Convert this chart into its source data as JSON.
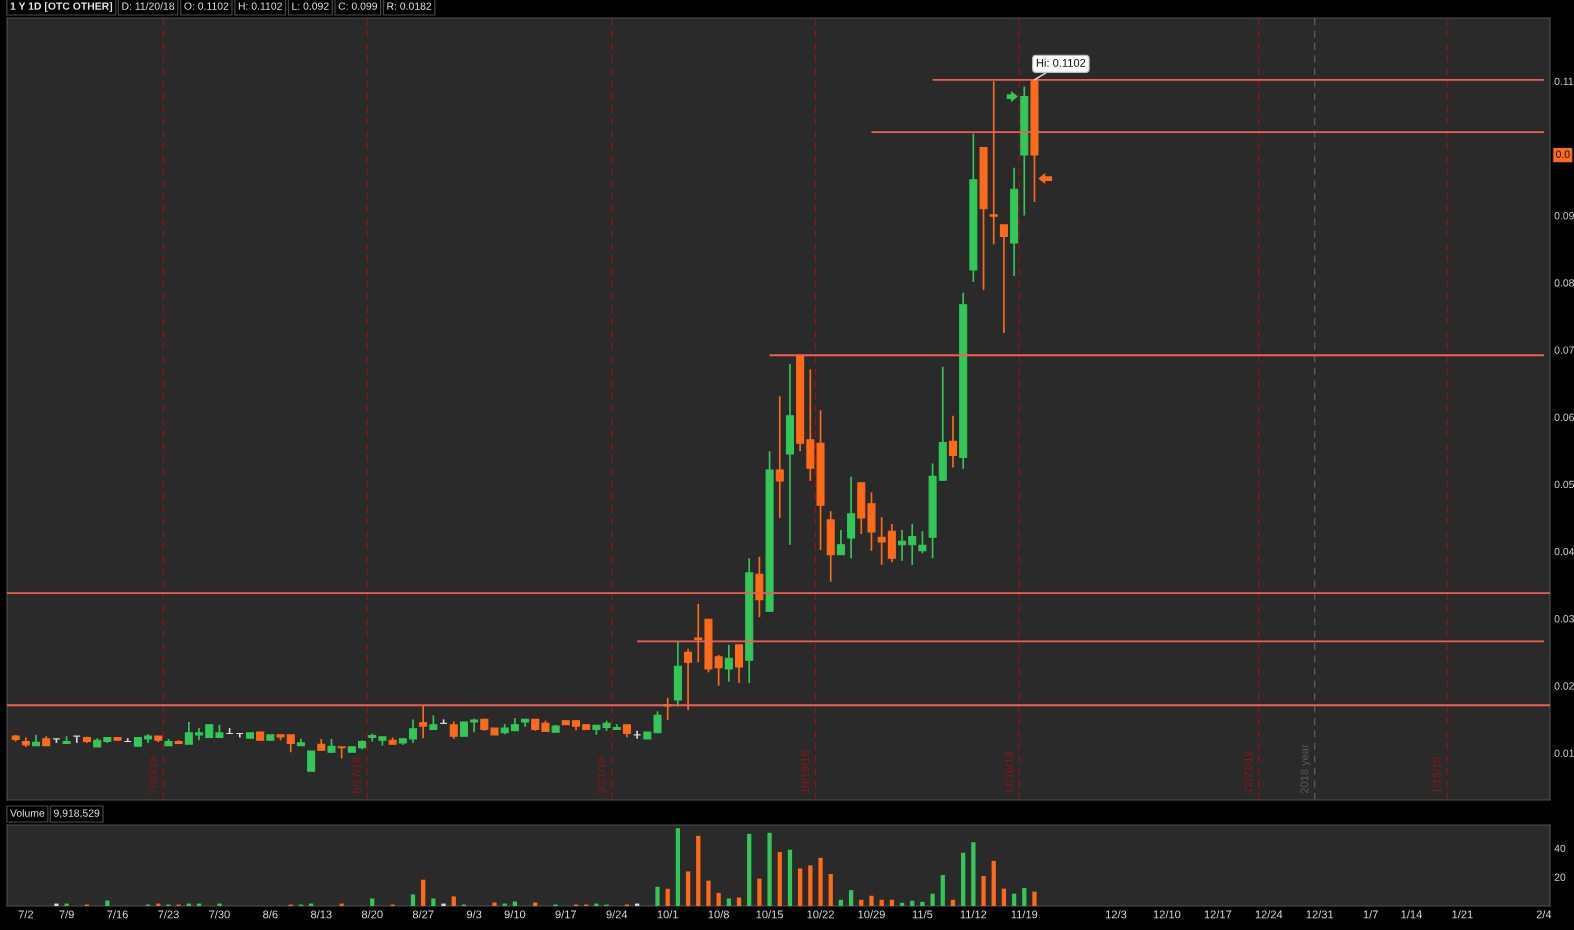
{
  "chart_data": [
    {
      "type": "candlestick",
      "title": "1 Y 1D [OTC OTHER]",
      "annotations": [
        "D: 11/20/18",
        "O: 0.1102",
        "H: 0.1102",
        "L: 0.092",
        "C: 0.099",
        "R: 0.0182",
        "0.0",
        "7/20/18",
        "8/17/18",
        "9/21/18",
        "10/19/18",
        "11/16/18",
        "12/21/18",
        "2018 year",
        "1/18/19",
        {
          "text": "Hi: 0.1102",
          "y": 0.1102
        }
      ],
      "categories": [
        null,
        null,
        null,
        null,
        null,
        null,
        null,
        null,
        null,
        null,
        null,
        null,
        null,
        null,
        null,
        null,
        null,
        null,
        null,
        null,
        null,
        null,
        null,
        null,
        null,
        null,
        null,
        null,
        null,
        null,
        null,
        null,
        null,
        null,
        null,
        null,
        null,
        null,
        null,
        null,
        null,
        null,
        null,
        null,
        null,
        null,
        null,
        null,
        null,
        null,
        null,
        null,
        null,
        null,
        null,
        null,
        null,
        null,
        null,
        null,
        null,
        null,
        null,
        null,
        null,
        null,
        null,
        null,
        null,
        null,
        null,
        null,
        null,
        null,
        null,
        null,
        null,
        null,
        null,
        null,
        null,
        null,
        null,
        null,
        null,
        null,
        null,
        null,
        null,
        null,
        null,
        null,
        null,
        null,
        null,
        null,
        null,
        null,
        null,
        null,
        null,
        null,
        null,
        null,
        null,
        null,
        null,
        null,
        null,
        null,
        null,
        null,
        null,
        null,
        null,
        null,
        null,
        null,
        null,
        null,
        null,
        null,
        null,
        null,
        null,
        null,
        null,
        null,
        null,
        null,
        null,
        null,
        null,
        null,
        null,
        null,
        null,
        null,
        null,
        null,
        null,
        null,
        null,
        null,
        null,
        null,
        null,
        null,
        null,
        null,
        null
      ],
      "ohlc": [
        [
          0.0125,
          0.0127,
          0.0117,
          0.012
        ],
        [
          0.0117,
          0.0123,
          0.0109,
          0.0112
        ],
        [
          0.0111,
          0.0127,
          0.0111,
          0.0116
        ],
        [
          0.0121,
          0.0125,
          0.0111,
          0.0111
        ],
        [
          0.0121,
          0.0121,
          0.0115,
          0.0121
        ],
        [
          0.0114,
          0.0125,
          0.0114,
          0.0117
        ],
        [
          0.0125,
          0.0125,
          0.0115,
          0.0125
        ],
        [
          0.0123,
          0.0124,
          0.0115,
          0.0117
        ],
        [
          0.0109,
          0.0122,
          0.0109,
          0.0119
        ],
        [
          0.0117,
          0.0123,
          0.0115,
          0.0123
        ],
        [
          0.0123,
          0.0123,
          0.0119,
          0.0119
        ],
        [
          0.0117,
          0.0122,
          0.0117,
          0.0117
        ],
        [
          0.011,
          0.0123,
          0.011,
          0.0123
        ],
        [
          0.0121,
          0.0128,
          0.0115,
          0.0125
        ],
        [
          0.0125,
          0.0125,
          0.0116,
          0.0119
        ],
        [
          0.0111,
          0.0121,
          0.0111,
          0.0117
        ],
        [
          0.0117,
          0.0119,
          0.0113,
          0.0114
        ],
        [
          0.0113,
          0.0146,
          0.0113,
          0.013
        ],
        [
          0.0127,
          0.0137,
          0.0119,
          0.013
        ],
        [
          0.0123,
          0.0142,
          0.0123,
          0.0142
        ],
        [
          0.0123,
          0.0142,
          0.0123,
          0.013
        ],
        [
          0.0129,
          0.0137,
          0.0129,
          0.0129
        ],
        [
          0.0129,
          0.0129,
          0.0123,
          0.0129
        ],
        [
          0.0122,
          0.013,
          0.0122,
          0.013
        ],
        [
          0.0131,
          0.0131,
          0.0119,
          0.0119
        ],
        [
          0.0119,
          0.0127,
          0.0119,
          0.0127
        ],
        [
          0.0127,
          0.0127,
          0.0119,
          0.0124
        ],
        [
          0.0127,
          0.0127,
          0.0101,
          0.0114
        ],
        [
          0.0111,
          0.0121,
          0.0111,
          0.0115
        ],
        [
          0.0073,
          0.0103,
          0.0073,
          0.0103
        ],
        [
          0.0113,
          0.0121,
          0.0104,
          0.0104
        ],
        [
          0.0101,
          0.0121,
          0.0101,
          0.011
        ],
        [
          0.0109,
          0.0109,
          0.0092,
          0.0108
        ],
        [
          0.0101,
          0.0109,
          0.0101,
          0.0109
        ],
        [
          0.0108,
          0.0119,
          0.0105,
          0.0117
        ],
        [
          0.0123,
          0.0129,
          0.0117,
          0.0126
        ],
        [
          0.0119,
          0.0124,
          0.0111,
          0.0124
        ],
        [
          0.0119,
          0.0123,
          0.0113,
          0.0113
        ],
        [
          0.0115,
          0.0121,
          0.0112,
          0.0121
        ],
        [
          0.0121,
          0.015,
          0.0115,
          0.0136
        ],
        [
          0.0145,
          0.017,
          0.0122,
          0.014
        ],
        [
          0.0135,
          0.0156,
          0.0135,
          0.0142
        ],
        [
          0.0144,
          0.015,
          0.0144,
          0.0144
        ],
        [
          0.0142,
          0.0147,
          0.0121,
          0.0125
        ],
        [
          0.0125,
          0.0146,
          0.0125,
          0.0146
        ],
        [
          0.0146,
          0.0151,
          0.0131,
          0.0149
        ],
        [
          0.015,
          0.015,
          0.0133,
          0.0135
        ],
        [
          0.0137,
          0.0137,
          0.0127,
          0.0127
        ],
        [
          0.013,
          0.0143,
          0.0128,
          0.0137
        ],
        [
          0.0133,
          0.0152,
          0.0133,
          0.0142
        ],
        [
          0.0146,
          0.0151,
          0.0139,
          0.015
        ],
        [
          0.015,
          0.015,
          0.0133,
          0.0135
        ],
        [
          0.0144,
          0.0148,
          0.0132,
          0.0132
        ],
        [
          0.0131,
          0.0142,
          0.0131,
          0.014
        ],
        [
          0.0148,
          0.0148,
          0.0142,
          0.0142
        ],
        [
          0.0148,
          0.0148,
          0.0134,
          0.014
        ],
        [
          0.0142,
          0.0142,
          0.0135,
          0.0135
        ],
        [
          0.0135,
          0.0141,
          0.0127,
          0.0141
        ],
        [
          0.0138,
          0.0148,
          0.0133,
          0.0144
        ],
        [
          0.0135,
          0.0143,
          0.0135,
          0.0138
        ],
        [
          0.0142,
          0.0142,
          0.0123,
          0.0129
        ],
        [
          0.0127,
          0.0133,
          0.0121,
          0.0127
        ],
        [
          0.0121,
          0.0131,
          0.0121,
          0.0131
        ],
        [
          0.013,
          0.0162,
          0.013,
          0.0156
        ],
        [
          0.0172,
          0.0182,
          0.0149,
          0.017
        ],
        [
          0.0179,
          0.0266,
          0.0169,
          0.0229
        ],
        [
          0.025,
          0.0255,
          0.0164,
          0.0235
        ],
        [
          0.0271,
          0.0322,
          0.0235,
          0.0269
        ],
        [
          0.0299,
          0.0299,
          0.022,
          0.0225
        ],
        [
          0.0243,
          0.0246,
          0.02,
          0.0227
        ],
        [
          0.0225,
          0.0261,
          0.0206,
          0.0241
        ],
        [
          0.0261,
          0.0261,
          0.0204,
          0.0228
        ],
        [
          0.0238,
          0.039,
          0.0204,
          0.0368
        ],
        [
          0.0366,
          0.0392,
          0.0302,
          0.0328
        ],
        [
          0.0311,
          0.0549,
          0.031,
          0.0521
        ],
        [
          0.0521,
          0.0631,
          0.045,
          0.0505
        ],
        [
          0.0545,
          0.0679,
          0.041,
          0.0602
        ],
        [
          0.0692,
          0.0692,
          0.0549,
          0.0561
        ],
        [
          0.0566,
          0.0671,
          0.0505,
          0.0524
        ],
        [
          0.0561,
          0.061,
          0.0402,
          0.0469
        ],
        [
          0.0447,
          0.046,
          0.0355,
          0.0395
        ],
        [
          0.0395,
          0.0432,
          0.0395,
          0.041
        ],
        [
          0.042,
          0.0511,
          0.039,
          0.0456
        ],
        [
          0.0502,
          0.0502,
          0.0426,
          0.045
        ],
        [
          0.0471,
          0.0488,
          0.0401,
          0.0429
        ],
        [
          0.0421,
          0.0451,
          0.038,
          0.0414
        ],
        [
          0.043,
          0.0441,
          0.0384,
          0.039
        ],
        [
          0.041,
          0.0432,
          0.0386,
          0.0415
        ],
        [
          0.041,
          0.0441,
          0.038,
          0.0422
        ],
        [
          0.0401,
          0.043,
          0.0397,
          0.0409
        ],
        [
          0.0421,
          0.0531,
          0.039,
          0.0512
        ],
        [
          0.0506,
          0.0675,
          0.0505,
          0.0562
        ],
        [
          0.0564,
          0.0602,
          0.0525,
          0.0543
        ],
        [
          0.054,
          0.0785,
          0.0523,
          0.0767
        ],
        [
          0.0819,
          0.1022,
          0.0801,
          0.0953
        ],
        [
          0.1001,
          0.1001,
          0.0789,
          0.091
        ],
        [
          0.0901,
          0.11,
          0.0857,
          0.0899
        ],
        [
          0.0886,
          0.0886,
          0.0725,
          0.0869
        ],
        [
          0.0859,
          0.0971,
          0.081,
          0.0939
        ],
        [
          0.099,
          0.1092,
          0.09,
          0.1077
        ],
        [
          0.1102,
          0.1102,
          0.092,
          0.099
        ],
        null,
        null,
        null,
        null,
        null,
        null,
        null,
        null,
        null,
        null,
        null,
        null,
        null,
        null,
        null,
        null,
        null,
        null,
        null,
        null,
        null,
        null,
        null,
        null,
        null,
        null,
        null,
        null,
        null,
        null,
        null,
        null,
        null,
        null,
        null,
        null,
        null,
        null,
        null,
        null,
        null,
        null,
        null,
        null,
        null,
        null,
        null,
        null,
        null,
        null
      ],
      "colors": [
        "#ff6a1a",
        "#ff6a1a",
        "#33c759",
        "#ff6a1a",
        "#d9d9d9",
        "#33c759",
        "#d9d9d9",
        "#ff6a1a",
        "#33c759",
        "#33c759",
        "#ff6a1a",
        "#d9d9d9",
        "#33c759",
        "#33c759",
        "#ff6a1a",
        "#33c759",
        "#ff6a1a",
        "#33c759",
        "#33c759",
        "#33c759",
        "#33c759",
        "#d9d9d9",
        "#d9d9d9",
        "#33c759",
        "#ff6a1a",
        "#33c759",
        "#ff6a1a",
        "#ff6a1a",
        "#33c759",
        "#33c759",
        "#ff6a1a",
        "#33c759",
        "#ff6a1a",
        "#33c759",
        "#33c759",
        "#33c759",
        "#33c759",
        "#ff6a1a",
        "#33c759",
        "#33c759",
        "#ff6a1a",
        "#33c759",
        "#d9d9d9",
        "#ff6a1a",
        "#33c759",
        "#33c759",
        "#ff6a1a",
        "#ff6a1a",
        "#33c759",
        "#33c759",
        "#33c759",
        "#ff6a1a",
        "#ff6a1a",
        "#33c759",
        "#ff6a1a",
        "#ff6a1a",
        "#ff6a1a",
        "#33c759",
        "#33c759",
        "#33c759",
        "#ff6a1a",
        "#d9d9d9",
        "#33c759",
        "#33c759",
        "#ff6a1a",
        "#33c759",
        "#ff6a1a",
        "#ff6a1a",
        "#ff6a1a",
        "#ff6a1a",
        "#33c759",
        "#ff6a1a",
        "#33c759",
        "#ff6a1a",
        "#33c759",
        "#ff6a1a",
        "#33c759",
        "#ff6a1a",
        "#ff6a1a",
        "#ff6a1a",
        "#ff6a1a",
        "#33c759",
        "#33c759",
        "#ff6a1a",
        "#ff6a1a",
        "#ff6a1a",
        "#ff6a1a",
        "#33c759",
        "#33c759",
        "#33c759",
        "#33c759",
        "#33c759",
        "#ff6a1a",
        "#33c759",
        "#33c759",
        "#ff6a1a",
        "#ff6a1a",
        "#ff6a1a",
        "#33c759",
        "#33c759",
        "#ff6a1a",
        null,
        null,
        null,
        null,
        null,
        null,
        null,
        null,
        null,
        null,
        null,
        null,
        null,
        null,
        null,
        null,
        null,
        null,
        null,
        null,
        null,
        null,
        null,
        null,
        null,
        null,
        null,
        null,
        null,
        null,
        null,
        null,
        null,
        null,
        null,
        null,
        null,
        null,
        null,
        null,
        null,
        null,
        null,
        null,
        null,
        null,
        null,
        null,
        null,
        null
      ],
      "series": [
        {
          "type": "line",
          "color": "#ef5f55",
          "values": [
            null,
            null,
            null,
            null,
            null,
            null,
            null,
            null,
            null,
            null,
            null,
            null,
            null,
            null,
            null,
            null,
            null,
            null,
            null,
            null,
            null,
            null,
            null,
            null,
            null,
            null,
            null,
            null,
            null,
            null,
            null,
            null,
            null,
            null,
            null,
            null,
            null,
            null,
            null,
            null,
            null,
            null,
            null,
            null,
            null,
            null,
            null,
            null,
            null,
            null,
            null,
            null,
            null,
            null,
            null,
            null,
            null,
            null,
            null,
            null,
            null,
            null,
            null,
            null,
            null,
            null,
            null,
            null,
            null,
            null,
            null,
            null,
            null,
            null,
            null,
            null,
            null,
            null,
            null,
            null,
            null,
            null,
            null,
            null,
            null,
            null,
            null,
            null,
            null,
            null,
            0.1102,
            0.1102,
            0.1102,
            0.1102,
            0.1102,
            0.1102,
            0.1102,
            0.1102,
            0.1102,
            0.1102,
            0.1102,
            0.1102,
            0.1102,
            0.1102,
            0.1102,
            0.1102,
            0.1102,
            0.1102,
            0.1102,
            0.1102,
            0.1102,
            0.1102,
            0.1102,
            0.1102,
            0.1102,
            0.1102,
            0.1102,
            0.1102,
            0.1102,
            0.1102,
            0.1102,
            0.1102,
            0.1102,
            0.1102,
            0.1102,
            0.1102,
            0.1102,
            0.1102,
            0.1102,
            0.1102,
            0.1102,
            0.1102,
            0.1102,
            0.1102,
            0.1102,
            0.1102,
            0.1102,
            0.1102,
            0.1102,
            0.1102,
            0.1102,
            0.1102,
            0.1102,
            0.1102,
            0.1102,
            0.1102,
            0.1102,
            0.1102,
            0.1102,
            0.1102,
            0.1102
          ]
        },
        {
          "type": "line",
          "color": "#ef5f55",
          "values": [
            null,
            null,
            null,
            null,
            null,
            null,
            null,
            null,
            null,
            null,
            null,
            null,
            null,
            null,
            null,
            null,
            null,
            null,
            null,
            null,
            null,
            null,
            null,
            null,
            null,
            null,
            null,
            null,
            null,
            null,
            null,
            null,
            null,
            null,
            null,
            null,
            null,
            null,
            null,
            null,
            null,
            null,
            null,
            null,
            null,
            null,
            null,
            null,
            null,
            null,
            null,
            null,
            null,
            null,
            null,
            null,
            null,
            null,
            null,
            null,
            null,
            null,
            null,
            null,
            null,
            null,
            null,
            null,
            null,
            null,
            null,
            null,
            null,
            null,
            null,
            null,
            null,
            null,
            null,
            null,
            null,
            null,
            null,
            null,
            0.1024,
            0.1024,
            0.1024,
            0.1024,
            0.1024,
            0.1024,
            0.1024,
            0.1024,
            0.1024,
            0.1024,
            0.1024,
            0.1024,
            0.1024,
            0.1024,
            0.1024,
            0.1024,
            0.1024,
            0.1024,
            0.1024,
            0.1024,
            0.1024,
            0.1024,
            0.1024,
            0.1024,
            0.1024,
            0.1024,
            0.1024,
            0.1024,
            0.1024,
            0.1024,
            0.1024,
            0.1024,
            0.1024,
            0.1024,
            0.1024,
            0.1024,
            0.1024,
            0.1024,
            0.1024,
            0.1024,
            0.1024,
            0.1024,
            0.1024,
            0.1024,
            0.1024,
            0.1024,
            0.1024,
            0.1024,
            0.1024,
            0.1024,
            0.1024,
            0.1024,
            0.1024,
            0.1024,
            0.1024,
            0.1024,
            0.1024,
            0.1024,
            0.1024,
            0.1024,
            0.1024,
            0.1024,
            0.1024,
            0.1024,
            0.1024,
            0.1024,
            0.1024
          ]
        },
        {
          "type": "line",
          "color": "#ef5f55",
          "values": [
            null,
            null,
            null,
            null,
            null,
            null,
            null,
            null,
            null,
            null,
            null,
            null,
            null,
            null,
            null,
            null,
            null,
            null,
            null,
            null,
            null,
            null,
            null,
            null,
            null,
            null,
            null,
            null,
            null,
            null,
            null,
            null,
            null,
            null,
            null,
            null,
            null,
            null,
            null,
            null,
            null,
            null,
            null,
            null,
            null,
            null,
            null,
            null,
            null,
            null,
            null,
            null,
            null,
            null,
            null,
            null,
            null,
            null,
            null,
            null,
            null,
            null,
            null,
            null,
            null,
            null,
            null,
            null,
            null,
            null,
            null,
            null,
            null,
            null,
            0.0692,
            0.0692,
            0.0692,
            0.0692,
            0.0692,
            0.0692,
            0.0692,
            0.0692,
            0.0692,
            0.0692,
            0.0692,
            0.0692,
            0.0692,
            0.0692,
            0.0692,
            0.0692,
            0.0692,
            0.0692,
            0.0692,
            0.0692,
            0.0692,
            0.0692,
            0.0692,
            0.0692,
            0.0692,
            0.0692,
            0.0692,
            0.0692,
            0.0692,
            0.0692,
            0.0692,
            0.0692,
            0.0692,
            0.0692,
            0.0692,
            0.0692,
            0.0692,
            0.0692,
            0.0692,
            0.0692,
            0.0692,
            0.0692,
            0.0692,
            0.0692,
            0.0692,
            0.0692,
            0.0692,
            0.0692,
            0.0692,
            0.0692,
            0.0692,
            0.0692,
            0.0692,
            0.0692,
            0.0692,
            0.0692,
            0.0692,
            0.0692,
            0.0692,
            0.0692,
            0.0692,
            0.0692,
            0.0692,
            0.0692,
            0.0692,
            0.0692,
            0.0692,
            0.0692,
            0.0692,
            0.0692,
            0.0692,
            0.0692,
            0.0692,
            0.0692,
            0.0692,
            0.0692,
            0.0692
          ]
        },
        {
          "type": "line",
          "color": "#ef5f55",
          "values": [
            null,
            null,
            null,
            null,
            null,
            null,
            null,
            null,
            null,
            null,
            null,
            null,
            null,
            null,
            null,
            null,
            null,
            null,
            null,
            null,
            null,
            null,
            null,
            null,
            null,
            null,
            null,
            null,
            null,
            null,
            null,
            null,
            null,
            null,
            null,
            null,
            null,
            null,
            null,
            null,
            null,
            null,
            null,
            null,
            null,
            null,
            null,
            null,
            null,
            null,
            null,
            null,
            null,
            null,
            null,
            null,
            null,
            null,
            null,
            null,
            null,
            0.0266,
            0.0266,
            0.0266,
            0.0266,
            0.0266,
            0.0266,
            0.0266,
            0.0266,
            0.0266,
            0.0266,
            0.0266,
            0.0266,
            0.0266,
            0.0266,
            0.0266,
            0.0266,
            0.0266,
            0.0266,
            0.0266,
            0.0266,
            0.0266,
            0.0266,
            0.0266,
            0.0266,
            0.0266,
            0.0266,
            0.0266,
            0.0266,
            0.0266,
            0.0266,
            0.0266,
            0.0266,
            0.0266,
            0.0266,
            0.0266,
            0.0266,
            0.0266,
            0.0266,
            0.0266,
            0.0266,
            0.0266,
            0.0266,
            0.0266,
            0.0266,
            0.0266,
            0.0266,
            0.0266,
            0.0266,
            0.0266,
            0.0266,
            0.0266,
            0.0266,
            0.0266,
            0.0266,
            0.0266,
            0.0266,
            0.0266,
            0.0266,
            0.0266,
            0.0266,
            0.0266,
            0.0266,
            0.0266,
            0.0266,
            0.0266,
            0.0266,
            0.0266,
            0.0266,
            0.0266,
            0.0266,
            0.0266,
            0.0266,
            0.0266,
            0.0266,
            0.0266,
            0.0266,
            0.0266,
            0.0266,
            0.0266,
            0.0266,
            0.0266,
            0.0266,
            0.0266,
            0.0266,
            0.0266,
            0.0266,
            0.0266,
            0.0266,
            0.0266,
            0.0266
          ]
        }
      ],
      "ref_lines": [
        {
          "axis": "y",
          "value": 0.0338,
          "color": "#ef5f55"
        },
        {
          "axis": "y",
          "value": 0.0171,
          "color": "#ef5f55"
        }
      ],
      "ylim": [
        0.003,
        0.1194
      ],
      "yticks": [
        0.01,
        0.02,
        0.03,
        0.04,
        0.05,
        0.06,
        0.07,
        0.08,
        0.09,
        0.11
      ]
    },
    {
      "type": "bar",
      "title": "Volume",
      "annotations": [
        "9,918,529"
      ],
      "categories": [
        null,
        "7/2",
        null,
        null,
        null,
        "7/9",
        null,
        null,
        null,
        null,
        "7/16",
        null,
        null,
        null,
        null,
        "7/23",
        null,
        null,
        null,
        null,
        "7/30",
        null,
        null,
        null,
        null,
        "8/6",
        null,
        null,
        null,
        null,
        "8/13",
        null,
        null,
        null,
        null,
        "8/20",
        null,
        null,
        null,
        null,
        "8/27",
        null,
        null,
        null,
        null,
        "9/3",
        null,
        null,
        null,
        "9/10",
        null,
        null,
        null,
        null,
        "9/17",
        null,
        null,
        null,
        null,
        "9/24",
        null,
        null,
        null,
        null,
        "10/1",
        null,
        null,
        null,
        null,
        "10/8",
        null,
        null,
        null,
        null,
        "10/15",
        null,
        null,
        null,
        null,
        "10/22",
        null,
        null,
        null,
        null,
        "10/29",
        null,
        null,
        null,
        null,
        "11/5",
        null,
        null,
        null,
        null,
        "11/12",
        null,
        null,
        null,
        null,
        "11/19",
        null,
        null,
        null,
        null,
        null,
        null,
        null,
        null,
        "12/3",
        null,
        null,
        null,
        null,
        "12/10",
        null,
        null,
        null,
        null,
        "12/17",
        null,
        null,
        null,
        null,
        "12/24",
        null,
        null,
        null,
        null,
        "12/31",
        null,
        null,
        null,
        null,
        "1/7",
        null,
        null,
        null,
        "1/14",
        null,
        null,
        null,
        null,
        "1/21",
        null,
        null,
        null,
        null,
        null,
        null,
        null,
        "2/4"
      ],
      "values": [
        0,
        0,
        0,
        0,
        1.7,
        1.7,
        0,
        1.0,
        0,
        3.8,
        0,
        0,
        0,
        1.0,
        1.7,
        1.0,
        1.0,
        1.7,
        1.7,
        0,
        1.7,
        0,
        0,
        0,
        0,
        0,
        0,
        1.0,
        1.0,
        1.7,
        0,
        0,
        1.7,
        0,
        0,
        5.2,
        0,
        1.0,
        0,
        8.0,
        18.2,
        5.2,
        1.7,
        6.6,
        1.0,
        0,
        0,
        2.4,
        1.7,
        3.1,
        0,
        2.4,
        0,
        1.0,
        0,
        1.0,
        1.0,
        1.7,
        1.0,
        0,
        1.0,
        1.7,
        0,
        13.3,
        11.9,
        53.8,
        23.9,
        48.5,
        17.5,
        9.1,
        5.2,
        5.9,
        49.9,
        18.9,
        50.6,
        37.4,
        38.9,
        26.0,
        28.1,
        33.3,
        22.1,
        4.3,
        11.0,
        4.3,
        7.1,
        4.3,
        4.3,
        2.2,
        3.6,
        2.9,
        8.5,
        21.4,
        4.3,
        36.8,
        44.1,
        20.7,
        31.2,
        12.0,
        8.5,
        12.4,
        9.9,
        null,
        null,
        null,
        null,
        null,
        null,
        null,
        null,
        null,
        null,
        null,
        null,
        null,
        null,
        null,
        null,
        null,
        null,
        null,
        null,
        null,
        null,
        null,
        null,
        null,
        null,
        null,
        null,
        null,
        null,
        null,
        null,
        null,
        null,
        null,
        null,
        null,
        null,
        null,
        null,
        null,
        null,
        null,
        null,
        null,
        null,
        null,
        null,
        null,
        null
      ],
      "colors": [
        "#ff6a1a",
        "#ff6a1a",
        "#33c759",
        "#ff6a1a",
        "#d9d9d9",
        "#33c759",
        "#d9d9d9",
        "#ff6a1a",
        "#33c759",
        "#33c759",
        "#ff6a1a",
        "#d9d9d9",
        "#33c759",
        "#33c759",
        "#ff6a1a",
        "#33c759",
        "#ff6a1a",
        "#33c759",
        "#33c759",
        "#33c759",
        "#33c759",
        "#d9d9d9",
        "#d9d9d9",
        "#33c759",
        "#ff6a1a",
        "#33c759",
        "#ff6a1a",
        "#ff6a1a",
        "#33c759",
        "#33c759",
        "#ff6a1a",
        "#33c759",
        "#ff6a1a",
        "#33c759",
        "#33c759",
        "#33c759",
        "#33c759",
        "#ff6a1a",
        "#33c759",
        "#33c759",
        "#ff6a1a",
        "#33c759",
        "#d9d9d9",
        "#ff6a1a",
        "#33c759",
        "#33c759",
        "#ff6a1a",
        "#ff6a1a",
        "#33c759",
        "#33c759",
        "#33c759",
        "#ff6a1a",
        "#ff6a1a",
        "#33c759",
        "#ff6a1a",
        "#ff6a1a",
        "#ff6a1a",
        "#33c759",
        "#33c759",
        "#33c759",
        "#ff6a1a",
        "#d9d9d9",
        "#33c759",
        "#33c759",
        "#ff6a1a",
        "#33c759",
        "#ff6a1a",
        "#ff6a1a",
        "#ff6a1a",
        "#ff6a1a",
        "#33c759",
        "#ff6a1a",
        "#33c759",
        "#ff6a1a",
        "#33c759",
        "#ff6a1a",
        "#33c759",
        "#ff6a1a",
        "#ff6a1a",
        "#ff6a1a",
        "#ff6a1a",
        "#33c759",
        "#33c759",
        "#ff6a1a",
        "#ff6a1a",
        "#ff6a1a",
        "#ff6a1a",
        "#33c759",
        "#33c759",
        "#33c759",
        "#33c759",
        "#33c759",
        "#ff6a1a",
        "#33c759",
        "#33c759",
        "#ff6a1a",
        "#ff6a1a",
        "#ff6a1a",
        "#33c759",
        "#33c759",
        "#ff6a1a",
        null,
        null,
        null,
        null,
        null,
        null,
        null,
        null,
        null,
        null,
        null,
        null,
        null,
        null,
        null,
        null,
        null,
        null,
        null,
        null,
        null,
        null,
        null,
        null,
        null,
        null,
        null,
        null,
        null,
        null,
        null,
        null,
        null,
        null,
        null,
        null,
        null,
        null,
        null,
        null,
        null,
        null,
        null,
        null,
        null,
        null,
        null,
        null,
        null,
        null
      ],
      "ylim": [
        0,
        56
      ],
      "yticks": [
        20,
        40
      ]
    }
  ]
}
